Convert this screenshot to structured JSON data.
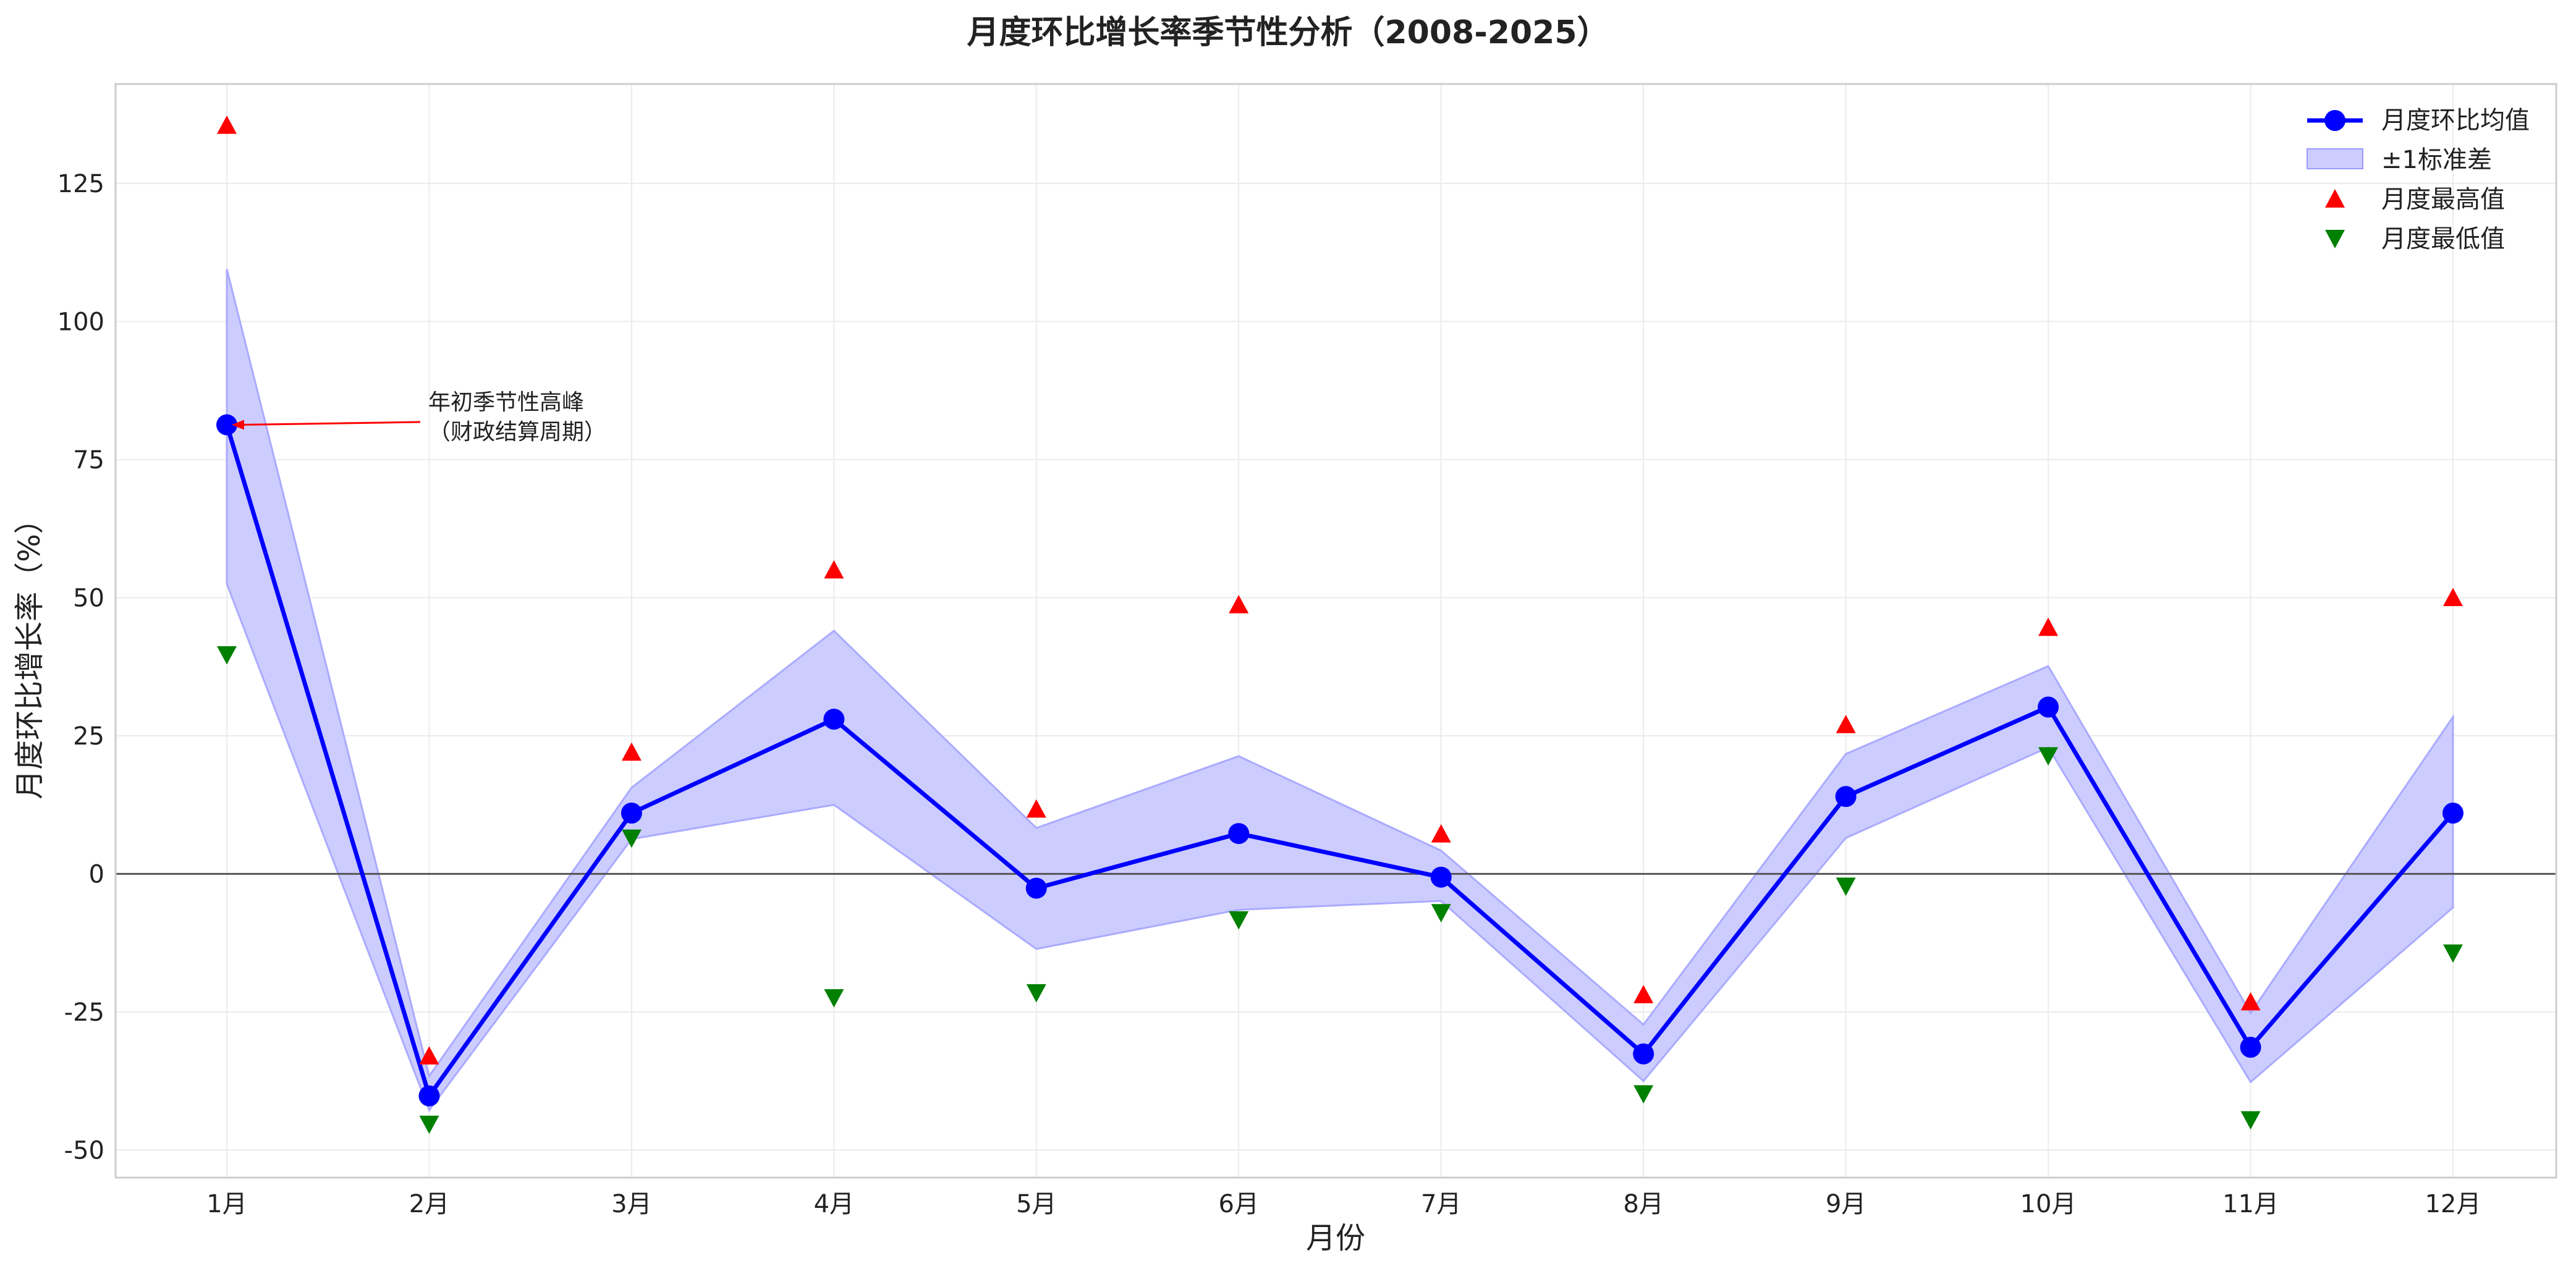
{
  "chart_data": {
    "type": "line",
    "title": "月度环比增长率季节性分析（2008-2025）",
    "xlabel": "月份",
    "ylabel": "月度环比增长率（%）",
    "categories": [
      "1月",
      "2月",
      "3月",
      "4月",
      "5月",
      "6月",
      "7月",
      "8月",
      "9月",
      "10月",
      "11月",
      "12月"
    ],
    "ylim": [
      -55,
      143
    ],
    "yticks": [
      -50,
      -25,
      0,
      25,
      50,
      75,
      100,
      125
    ],
    "grid": true,
    "legend_position": "top-right",
    "series": [
      {
        "name": "月度环比均值",
        "kind": "line",
        "color": "#0000ff",
        "values": [
          81.3,
          -40.2,
          11.0,
          28.0,
          -2.6,
          7.3,
          -0.6,
          -32.6,
          14.0,
          30.2,
          -31.4,
          11.0
        ]
      },
      {
        "name": "±1标准差",
        "kind": "band",
        "color": "#ccccff",
        "upper": [
          109.5,
          -36.6,
          15.6,
          44.0,
          8.3,
          21.3,
          4.2,
          -27.3,
          21.7,
          37.6,
          -25.2,
          28.4
        ],
        "lower": [
          52.5,
          -42.8,
          6.3,
          12.5,
          -13.6,
          -6.5,
          -4.9,
          -37.5,
          6.5,
          22.9,
          -37.7,
          -6.1
        ]
      },
      {
        "name": "月度最高值",
        "kind": "scatter",
        "marker": "triangle-up",
        "color": "#ff0000",
        "values": [
          135.5,
          -33.0,
          22.0,
          55.0,
          11.7,
          48.7,
          7.2,
          -21.9,
          27.0,
          44.6,
          -23.2,
          50.0
        ]
      },
      {
        "name": "月度最低值",
        "kind": "scatter",
        "marker": "triangle-down",
        "color": "#008000",
        "values": [
          39.7,
          -45.3,
          6.5,
          -22.4,
          -21.5,
          -8.3,
          -7.0,
          -39.8,
          -2.2,
          21.4,
          -44.5,
          -14.3
        ]
      }
    ],
    "annotations": [
      {
        "text_line1": "年初季节性高峰",
        "text_line2": "（财政结算周期）",
        "points_to": {
          "x": "1月",
          "y": 81.3
        }
      }
    ],
    "reference_line": {
      "y": 0
    }
  }
}
